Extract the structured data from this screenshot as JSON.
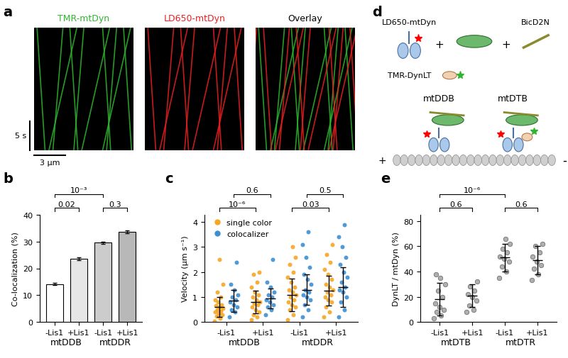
{
  "panel_a": {
    "panel": "a",
    "channels": [
      {
        "label": "TMR-mtDyn",
        "color": "#2fb52f"
      },
      {
        "label": "LD650-mtDyn",
        "color": "#e82020"
      },
      {
        "label": "Overlay",
        "color": "#000000"
      }
    ],
    "time_scale": "5 s",
    "distance_scale": "3 µm"
  },
  "panel_d": {
    "panel": "d",
    "components": [
      "LD650-mtDyn",
      "TMR-DynLT",
      "BicD2N"
    ],
    "operator": "+",
    "complexes": [
      "mtDDB",
      "mtDTB"
    ],
    "microtubule_ends": [
      "+",
      "-"
    ]
  },
  "chart_data": [
    {
      "panel": "b",
      "type": "bar",
      "ylabel": "Co-localization (%)",
      "categories": [
        "-Lis1",
        "+Lis1",
        "-Lis1",
        "+Lis1"
      ],
      "groups": [
        {
          "label": "mtDDB",
          "categories": [
            0,
            1
          ]
        },
        {
          "label": "mtDDR",
          "categories": [
            2,
            3
          ]
        }
      ],
      "values": [
        14.1,
        23.6,
        29.5,
        33.5
      ],
      "errors": [
        0.4,
        0.5,
        0.5,
        0.5
      ],
      "colors": [
        "#ffffff",
        "#e6e6e6",
        "#cccccc",
        "#b8b8b8"
      ],
      "ylim": [
        0,
        40
      ],
      "yticks": [
        0,
        10,
        20,
        30,
        40
      ],
      "annotations": [
        {
          "text": "0.02",
          "between": [
            0,
            1
          ]
        },
        {
          "text": "0.3",
          "between": [
            2,
            3
          ]
        },
        {
          "text": "10⁻³",
          "between": [
            0,
            2
          ]
        }
      ]
    },
    {
      "panel": "c",
      "type": "scatter",
      "ylabel": "Velocity (µm s⁻¹)",
      "categories": [
        "-Lis1",
        "+Lis1",
        "-Lis1",
        "+Lis1"
      ],
      "groups": [
        {
          "label": "mtDDB",
          "categories": [
            0,
            1
          ]
        },
        {
          "label": "mtDDR",
          "categories": [
            2,
            3
          ]
        }
      ],
      "legend": "upper left",
      "series": [
        {
          "name": "single color",
          "color": "#f5a623",
          "values": [
            [
              0.05,
              0.15,
              0.25,
              0.3,
              0.35,
              0.4,
              0.45,
              0.5,
              0.55,
              0.6,
              0.65,
              0.7,
              0.8,
              0.9,
              1.0,
              1.2,
              1.5,
              2.5
            ],
            [
              0.1,
              0.2,
              0.3,
              0.4,
              0.5,
              0.6,
              0.7,
              0.75,
              0.8,
              0.9,
              1.0,
              1.1,
              1.2,
              1.4,
              1.6,
              1.9,
              2.0
            ],
            [
              0.1,
              0.3,
              0.5,
              0.6,
              0.7,
              0.8,
              0.9,
              1.0,
              1.1,
              1.2,
              1.3,
              1.4,
              1.6,
              1.8,
              2.0,
              2.3,
              2.6,
              3.0
            ],
            [
              0.2,
              0.4,
              0.6,
              0.8,
              0.9,
              1.0,
              1.1,
              1.2,
              1.3,
              1.4,
              1.5,
              1.7,
              1.9,
              2.1,
              2.4,
              2.7,
              3.1
            ]
          ],
          "mean": [
            0.6,
            0.8,
            1.1,
            1.25
          ],
          "sd": [
            0.4,
            0.45,
            0.65,
            0.6
          ]
        },
        {
          "name": "colocalizer",
          "color": "#3d8fd1",
          "values": [
            [
              0.2,
              0.4,
              0.5,
              0.6,
              0.7,
              0.8,
              0.9,
              1.0,
              1.1,
              1.3,
              1.5,
              2.4
            ],
            [
              0.3,
              0.5,
              0.6,
              0.7,
              0.8,
              0.9,
              1.0,
              1.1,
              1.2,
              1.4,
              1.6,
              2.5
            ],
            [
              0.2,
              0.5,
              0.7,
              0.9,
              1.0,
              1.1,
              1.2,
              1.3,
              1.5,
              1.7,
              1.9,
              2.2,
              2.6,
              3.1,
              3.6
            ],
            [
              0.2,
              0.5,
              0.8,
              1.0,
              1.2,
              1.3,
              1.4,
              1.6,
              1.8,
              2.0,
              2.3,
              2.6,
              3.0,
              3.4,
              3.9
            ]
          ],
          "mean": [
            0.85,
            0.95,
            1.3,
            1.4
          ],
          "sd": [
            0.45,
            0.4,
            0.6,
            0.8
          ]
        }
      ],
      "ylim": [
        0,
        4.3
      ],
      "yticks": [
        0,
        1,
        2,
        3,
        4
      ],
      "annotations": [
        {
          "text": "10⁻⁶",
          "between": [
            0,
            1
          ],
          "series": "single color"
        },
        {
          "text": "0.6",
          "between": [
            0,
            1
          ],
          "series": "colocalizer"
        },
        {
          "text": "0.03",
          "between": [
            2,
            3
          ],
          "series": "single color"
        },
        {
          "text": "0.5",
          "between": [
            2,
            3
          ],
          "series": "colocalizer"
        }
      ]
    },
    {
      "panel": "e",
      "type": "scatter",
      "ylabel": "DynLT / mtDyn (%)",
      "categories": [
        "-Lis1",
        "+Lis1",
        "-Lis1",
        "+Lis1"
      ],
      "groups": [
        {
          "label": "mtDTB",
          "categories": [
            0,
            1
          ]
        },
        {
          "label": "mtDTR",
          "categories": [
            2,
            3
          ]
        }
      ],
      "series": [
        {
          "name": "DynLT / mtDyn",
          "color": "#a6a6a6",
          "values": [
            [
              3,
              5,
              8,
              10,
              12,
              15,
              20,
              25,
              30,
              35,
              38
            ],
            [
              8,
              10,
              13,
              17,
              20,
              22,
              25,
              28,
              32
            ],
            [
              35,
              40,
              44,
              48,
              50,
              52,
              55,
              58,
              62,
              66
            ],
            [
              33,
              38,
              42,
              45,
              48,
              52,
              55,
              60,
              62
            ]
          ],
          "mean": [
            18,
            21,
            51,
            49
          ],
          "sd": [
            13,
            9,
            11,
            11
          ]
        }
      ],
      "ylim": [
        0,
        85
      ],
      "yticks": [
        0,
        20,
        40,
        60,
        80
      ],
      "annotations": [
        {
          "text": "0.6",
          "between": [
            0,
            1
          ]
        },
        {
          "text": "0.6",
          "between": [
            2,
            3
          ]
        },
        {
          "text": "10⁻⁶",
          "between": [
            0,
            2
          ]
        }
      ]
    }
  ]
}
